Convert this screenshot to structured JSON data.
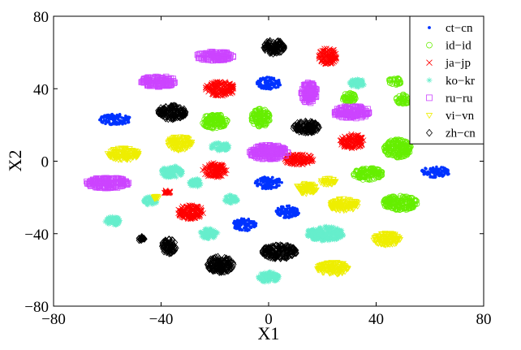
{
  "chart_data": {
    "type": "scatter",
    "title": "",
    "xlabel": "X1",
    "ylabel": "X2",
    "xlim": [
      -80,
      80
    ],
    "ylim": [
      -80,
      80
    ],
    "xticks": [
      -80,
      -40,
      0,
      40,
      80
    ],
    "yticks": [
      -80,
      -40,
      0,
      40,
      80
    ],
    "grid": false,
    "legend_position": "top-right",
    "series": [
      {
        "name": "ct−cn",
        "color": "#0033ff",
        "marker": "dot",
        "clusters": [
          {
            "x": -57,
            "y": 23,
            "w": 12,
            "h": 6
          },
          {
            "x": 0,
            "y": 43,
            "w": 9,
            "h": 7
          },
          {
            "x": 0,
            "y": -12,
            "w": 10,
            "h": 7
          },
          {
            "x": 7,
            "y": -28,
            "w": 9,
            "h": 7
          },
          {
            "x": -9,
            "y": -35,
            "w": 9,
            "h": 7
          },
          {
            "x": 62,
            "y": -6,
            "w": 11,
            "h": 6
          }
        ]
      },
      {
        "name": "id−id",
        "color": "#66ee00",
        "marker": "circle",
        "clusters": [
          {
            "x": -20,
            "y": 22,
            "w": 10,
            "h": 8
          },
          {
            "x": -3,
            "y": 24,
            "w": 7,
            "h": 10
          },
          {
            "x": 30,
            "y": 35,
            "w": 5,
            "h": 6
          },
          {
            "x": 47,
            "y": 44,
            "w": 5,
            "h": 4
          },
          {
            "x": 50,
            "y": 34,
            "w": 5,
            "h": 6
          },
          {
            "x": 48,
            "y": 7,
            "w": 10,
            "h": 10
          },
          {
            "x": 37,
            "y": -7,
            "w": 11,
            "h": 7
          },
          {
            "x": 49,
            "y": -23,
            "w": 13,
            "h": 8
          }
        ]
      },
      {
        "name": "ja−jp",
        "color": "#ff0000",
        "marker": "x",
        "clusters": [
          {
            "x": 22,
            "y": 58,
            "w": 7,
            "h": 9
          },
          {
            "x": -18,
            "y": 40,
            "w": 11,
            "h": 8
          },
          {
            "x": 31,
            "y": 11,
            "w": 9,
            "h": 8
          },
          {
            "x": 11,
            "y": 1,
            "w": 12,
            "h": 6
          },
          {
            "x": -20,
            "y": -5,
            "w": 9,
            "h": 8
          },
          {
            "x": -38,
            "y": -17,
            "w": 3,
            "h": 2
          },
          {
            "x": -29,
            "y": -28,
            "w": 10,
            "h": 8
          }
        ]
      },
      {
        "name": "ko−kr",
        "color": "#66eecc",
        "marker": "star",
        "clusters": [
          {
            "x": 33,
            "y": 43,
            "w": 6,
            "h": 5
          },
          {
            "x": -18,
            "y": 8,
            "w": 7,
            "h": 5
          },
          {
            "x": -36,
            "y": -6,
            "w": 8,
            "h": 7
          },
          {
            "x": -27,
            "y": -12,
            "w": 5,
            "h": 5
          },
          {
            "x": -14,
            "y": -21,
            "w": 5,
            "h": 5
          },
          {
            "x": -44,
            "y": -22,
            "w": 5,
            "h": 5
          },
          {
            "x": -58,
            "y": -33,
            "w": 6,
            "h": 5
          },
          {
            "x": -22,
            "y": -40,
            "w": 7,
            "h": 6
          },
          {
            "x": 21,
            "y": -40,
            "w": 14,
            "h": 8
          },
          {
            "x": 0,
            "y": -64,
            "w": 8,
            "h": 6
          }
        ]
      },
      {
        "name": "ru−ru",
        "color": "#cc44ff",
        "marker": "square",
        "clusters": [
          {
            "x": -20,
            "y": 58,
            "w": 14,
            "h": 5
          },
          {
            "x": -41,
            "y": 44,
            "w": 13,
            "h": 6
          },
          {
            "x": 15,
            "y": 38,
            "w": 6,
            "h": 12
          },
          {
            "x": 31,
            "y": 27,
            "w": 14,
            "h": 7
          },
          {
            "x": 0,
            "y": 5,
            "w": 15,
            "h": 8
          },
          {
            "x": -60,
            "y": -12,
            "w": 16,
            "h": 6
          }
        ]
      },
      {
        "name": "vi−vn",
        "color": "#eeee00",
        "marker": "triangle-down",
        "clusters": [
          {
            "x": -54,
            "y": 4,
            "w": 12,
            "h": 7
          },
          {
            "x": -33,
            "y": 10,
            "w": 9,
            "h": 8
          },
          {
            "x": 14,
            "y": -15,
            "w": 8,
            "h": 6
          },
          {
            "x": 22,
            "y": -11,
            "w": 6,
            "h": 4
          },
          {
            "x": 28,
            "y": -24,
            "w": 11,
            "h": 7
          },
          {
            "x": 44,
            "y": -43,
            "w": 10,
            "h": 7
          },
          {
            "x": 24,
            "y": -59,
            "w": 12,
            "h": 7
          },
          {
            "x": -42,
            "y": -20,
            "w": 2,
            "h": 2
          }
        ]
      },
      {
        "name": "zh−cn",
        "color": "#000000",
        "marker": "diamond",
        "clusters": [
          {
            "x": 2,
            "y": 63,
            "w": 8,
            "h": 8
          },
          {
            "x": -36,
            "y": 27,
            "w": 11,
            "h": 8
          },
          {
            "x": 14,
            "y": 19,
            "w": 10,
            "h": 7
          },
          {
            "x": -47,
            "y": -43,
            "w": 3,
            "h": 3
          },
          {
            "x": -37,
            "y": -47,
            "w": 6,
            "h": 8
          },
          {
            "x": 4,
            "y": -50,
            "w": 13,
            "h": 8
          },
          {
            "x": -18,
            "y": -57,
            "w": 10,
            "h": 9
          }
        ]
      }
    ]
  }
}
